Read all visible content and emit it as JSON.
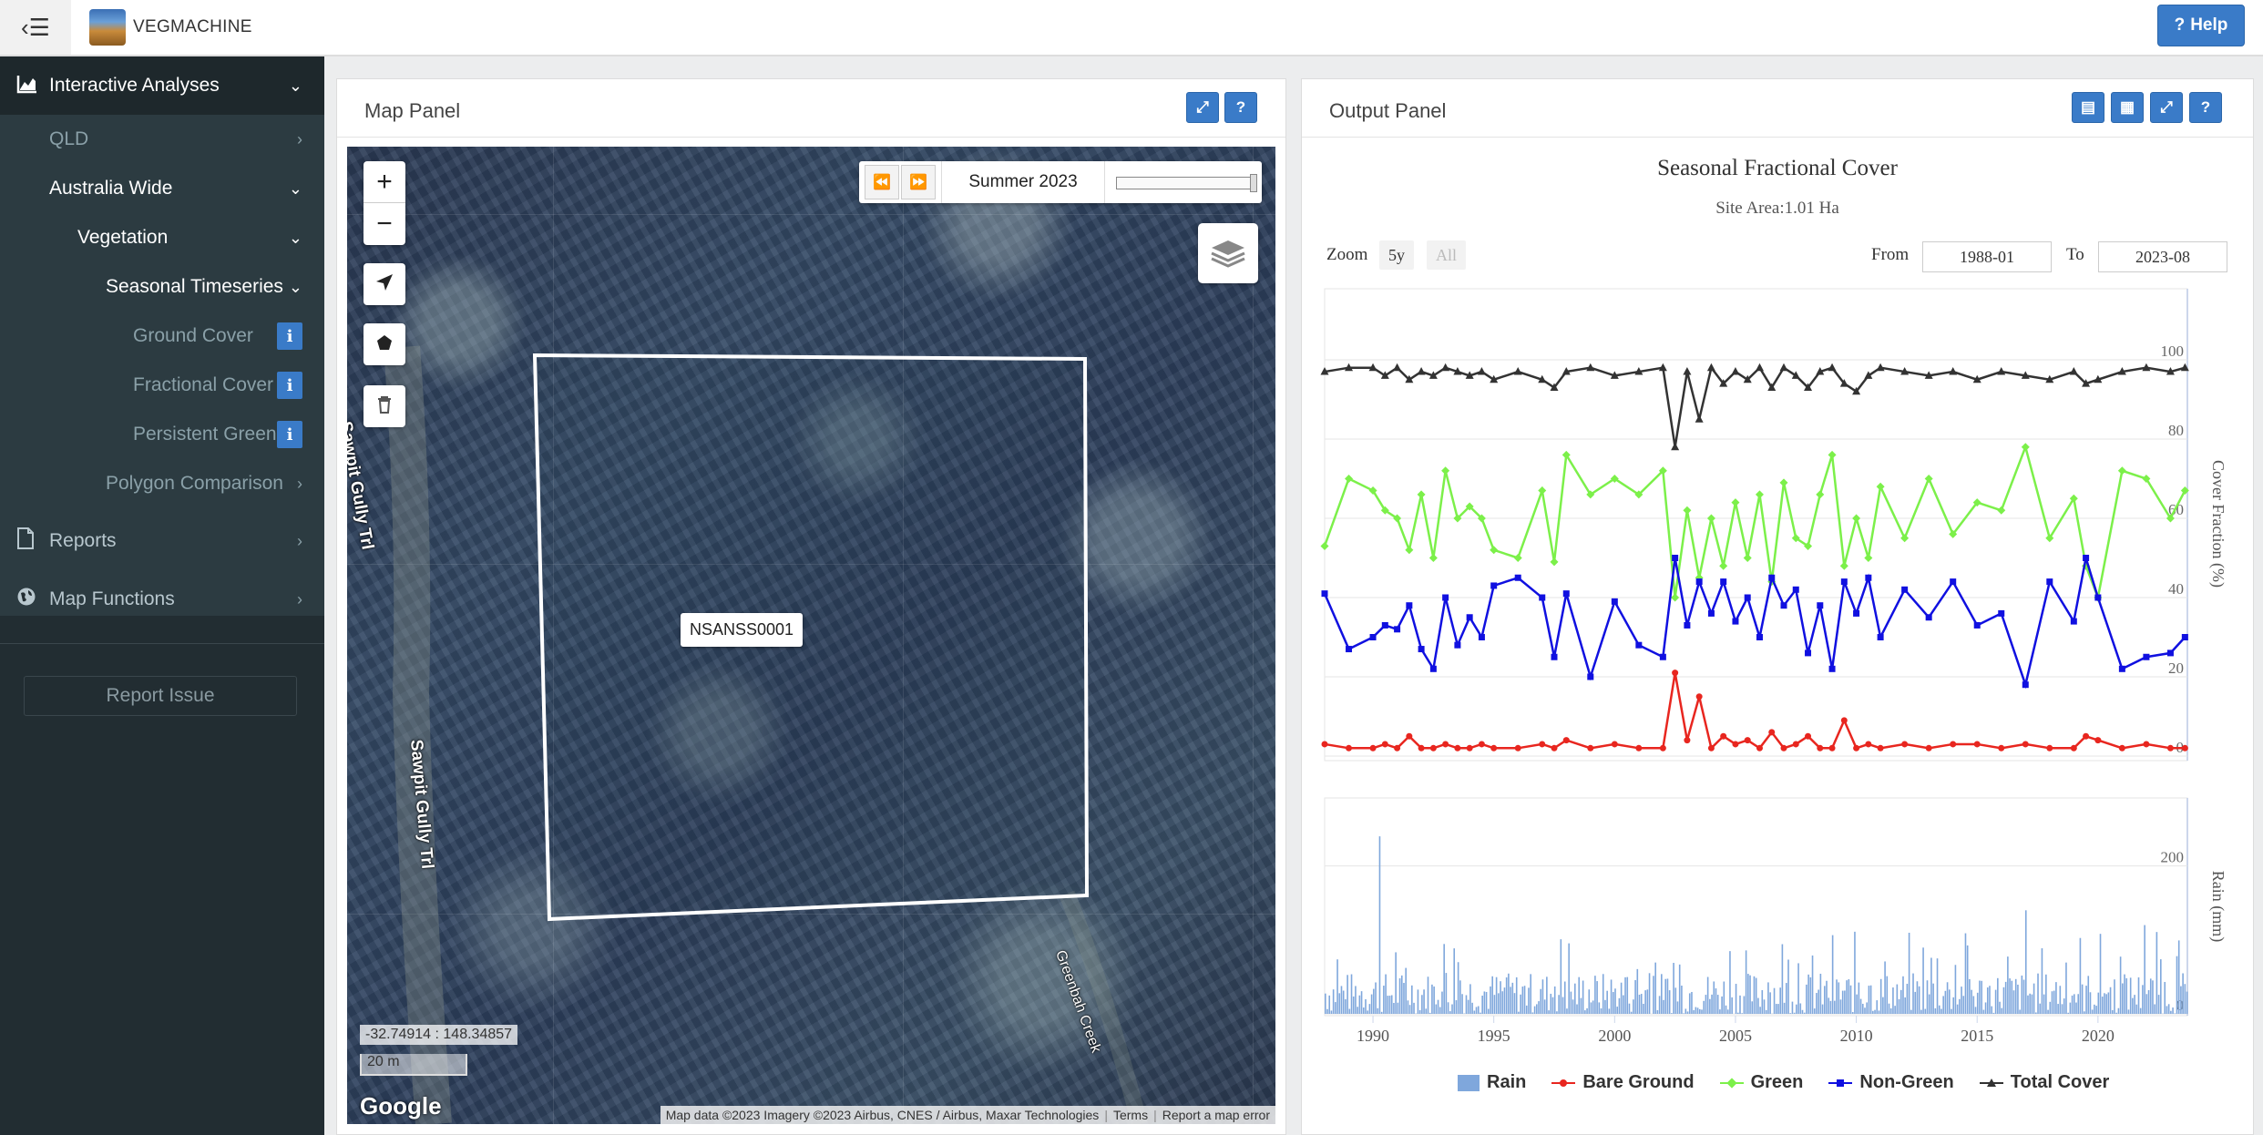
{
  "header": {
    "brand": "VEGMACHINE",
    "help_label": "Help"
  },
  "sidebar": {
    "items": [
      {
        "label": "Interactive Analyses",
        "level": 0,
        "chevron": "⌄"
      },
      {
        "label": "QLD",
        "level": 1,
        "chevron": "›"
      },
      {
        "label": "Australia Wide",
        "level": 1,
        "chevron": "⌄"
      },
      {
        "label": "Vegetation",
        "level": 2,
        "chevron": "⌄"
      },
      {
        "label": "Seasonal Timeseries",
        "level": 3,
        "chevron": "⌄"
      },
      {
        "label": "Ground Cover",
        "level": 4,
        "info": true
      },
      {
        "label": "Fractional Cover",
        "level": 4,
        "info": true
      },
      {
        "label": "Persistent Green",
        "level": 4,
        "info": true
      },
      {
        "label": "Polygon Comparison",
        "level": 3,
        "chevron": "›"
      },
      {
        "label": "Reports",
        "level": 0,
        "chevron": "›"
      },
      {
        "label": "Map Functions",
        "level": 0,
        "chevron": "›"
      }
    ],
    "report_issue": "Report Issue"
  },
  "map_panel": {
    "title": "Map Panel",
    "season": "Summer 2023",
    "site_label": "NSANSS0001",
    "road_1": "Sawpit Gully Trl",
    "road_2": "Sawpit Gully Trl",
    "creek": "Greenbah Creek",
    "coordinates": "-32.74914 : 148.34857",
    "scale": "20 m",
    "google": "Google",
    "attribution": [
      "Map data ©2023 Imagery ©2023 Airbus, CNES / Airbus, Maxar Technologies",
      "Terms",
      "Report a map error"
    ]
  },
  "output_panel": {
    "title": "Output Panel",
    "zoom_label": "Zoom",
    "zoom_options": [
      "5y",
      "All"
    ],
    "from_label": "From",
    "from_value": "1988-01",
    "to_label": "To",
    "to_value": "2023-08"
  },
  "colors": {
    "bare": "#e8261f",
    "green": "#7cf04a",
    "nongreen": "#1010e0",
    "total": "#333333",
    "rain": "#7fa7dc"
  },
  "chart_data": {
    "type": "line",
    "title": "Seasonal Fractional Cover",
    "subtitle": "Site Area:1.01 Ha",
    "xlim": [
      1988,
      2023.7
    ],
    "x_ticks": [
      1990,
      1995,
      2000,
      2005,
      2010,
      2015,
      2020
    ],
    "cover_axis": {
      "label": "Cover Fraction (%)",
      "ylim": [
        0,
        100
      ],
      "ticks": [
        0,
        20,
        40,
        60,
        80,
        100
      ]
    },
    "rain_axis": {
      "label": "Rain (mm)",
      "ylim": [
        0,
        250
      ],
      "ticks": [
        0,
        200
      ]
    },
    "legend": [
      "Rain",
      "Bare Ground",
      "Green",
      "Non-Green",
      "Total Cover"
    ],
    "series": [
      {
        "name": "Total Cover",
        "x": [
          1988.0,
          1989.0,
          1990.0,
          1990.5,
          1991.0,
          1991.5,
          1992.0,
          1992.5,
          1993.0,
          1993.5,
          1994.0,
          1994.5,
          1995.0,
          1996.0,
          1997.0,
          1997.5,
          1998.0,
          1999.0,
          2000.0,
          2001.0,
          2002.0,
          2002.5,
          2003.0,
          2003.5,
          2004.0,
          2004.5,
          2005.0,
          2005.5,
          2006.0,
          2006.5,
          2007.0,
          2007.5,
          2008.0,
          2008.5,
          2009.0,
          2009.5,
          2010.0,
          2010.5,
          2011.0,
          2012.0,
          2013.0,
          2014.0,
          2015.0,
          2016.0,
          2017.0,
          2018.0,
          2019.0,
          2019.5,
          2020.0,
          2021.0,
          2022.0,
          2023.0,
          2023.6
        ],
        "y": [
          97,
          98,
          98,
          96,
          98,
          95,
          97,
          96,
          98,
          97,
          96,
          97,
          95,
          97,
          95,
          93,
          97,
          98,
          96,
          97,
          98,
          78,
          97,
          85,
          98,
          94,
          97,
          95,
          98,
          93,
          98,
          96,
          93,
          97,
          98,
          94,
          92,
          96,
          98,
          97,
          96,
          97,
          95,
          97,
          96,
          95,
          97,
          94,
          95,
          97,
          98,
          97,
          98
        ]
      },
      {
        "name": "Green",
        "x": [
          1988.0,
          1989.0,
          1990.0,
          1990.5,
          1991.0,
          1991.5,
          1992.0,
          1992.5,
          1993.0,
          1993.5,
          1994.0,
          1994.5,
          1995.0,
          1996.0,
          1997.0,
          1997.5,
          1998.0,
          1999.0,
          2000.0,
          2001.0,
          2002.0,
          2002.5,
          2003.0,
          2003.5,
          2004.0,
          2004.5,
          2005.0,
          2005.5,
          2006.0,
          2006.5,
          2007.0,
          2007.5,
          2008.0,
          2008.5,
          2009.0,
          2009.5,
          2010.0,
          2010.5,
          2011.0,
          2012.0,
          2013.0,
          2014.0,
          2015.0,
          2016.0,
          2017.0,
          2018.0,
          2019.0,
          2019.5,
          2020.0,
          2021.0,
          2022.0,
          2023.0,
          2023.6
        ],
        "y": [
          53,
          70,
          67,
          62,
          60,
          52,
          66,
          50,
          72,
          60,
          63,
          60,
          52,
          50,
          67,
          49,
          76,
          66,
          70,
          66,
          72,
          40,
          62,
          45,
          60,
          48,
          64,
          50,
          66,
          44,
          69,
          55,
          53,
          66,
          76,
          48,
          60,
          50,
          68,
          55,
          70,
          56,
          64,
          62,
          78,
          55,
          65,
          48,
          40,
          72,
          70,
          60,
          67
        ]
      },
      {
        "name": "Non-Green",
        "x": [
          1988.0,
          1989.0,
          1990.0,
          1990.5,
          1991.0,
          1991.5,
          1992.0,
          1992.5,
          1993.0,
          1993.5,
          1994.0,
          1994.5,
          1995.0,
          1996.0,
          1997.0,
          1997.5,
          1998.0,
          1999.0,
          2000.0,
          2001.0,
          2002.0,
          2002.5,
          2003.0,
          2003.5,
          2004.0,
          2004.5,
          2005.0,
          2005.5,
          2006.0,
          2006.5,
          2007.0,
          2007.5,
          2008.0,
          2008.5,
          2009.0,
          2009.5,
          2010.0,
          2010.5,
          2011.0,
          2012.0,
          2013.0,
          2014.0,
          2015.0,
          2016.0,
          2017.0,
          2018.0,
          2019.0,
          2019.5,
          2020.0,
          2021.0,
          2022.0,
          2023.0,
          2023.6
        ],
        "y": [
          41,
          27,
          30,
          33,
          32,
          38,
          27,
          22,
          40,
          28,
          35,
          30,
          43,
          45,
          40,
          25,
          41,
          20,
          39,
          28,
          25,
          50,
          33,
          44,
          36,
          44,
          34,
          40,
          30,
          45,
          38,
          42,
          26,
          38,
          22,
          44,
          36,
          45,
          30,
          42,
          35,
          44,
          33,
          36,
          18,
          44,
          34,
          50,
          40,
          22,
          25,
          26,
          30
        ]
      },
      {
        "name": "Bare Ground",
        "x": [
          1988.0,
          1989.0,
          1990.0,
          1990.5,
          1991.0,
          1991.5,
          1992.0,
          1992.5,
          1993.0,
          1993.5,
          1994.0,
          1994.5,
          1995.0,
          1996.0,
          1997.0,
          1997.5,
          1998.0,
          1999.0,
          2000.0,
          2001.0,
          2002.0,
          2002.5,
          2003.0,
          2003.5,
          2004.0,
          2004.5,
          2005.0,
          2005.5,
          2006.0,
          2006.5,
          2007.0,
          2007.5,
          2008.0,
          2008.5,
          2009.0,
          2009.5,
          2010.0,
          2010.5,
          2011.0,
          2012.0,
          2013.0,
          2014.0,
          2015.0,
          2016.0,
          2017.0,
          2018.0,
          2019.0,
          2019.5,
          2020.0,
          2021.0,
          2022.0,
          2023.0,
          2023.6
        ],
        "y": [
          3,
          2,
          2,
          3,
          2,
          5,
          2,
          2,
          3,
          2,
          2,
          3,
          2,
          2,
          3,
          2,
          4,
          2,
          3,
          2,
          2,
          21,
          4,
          15,
          2,
          5,
          3,
          4,
          2,
          6,
          2,
          3,
          5,
          2,
          2,
          9,
          2,
          3,
          2,
          3,
          2,
          3,
          3,
          2,
          3,
          2,
          2,
          5,
          4,
          2,
          3,
          2,
          2
        ]
      },
      {
        "name": "Rain",
        "type": "bar",
        "step": 0.0833,
        "peak": [
          {
            "x": 1990.25,
            "y": 240
          },
          {
            "x": 2017.0,
            "y": 140
          },
          {
            "x": 2021.9,
            "y": 120
          }
        ],
        "typical_max": 70
      }
    ]
  }
}
